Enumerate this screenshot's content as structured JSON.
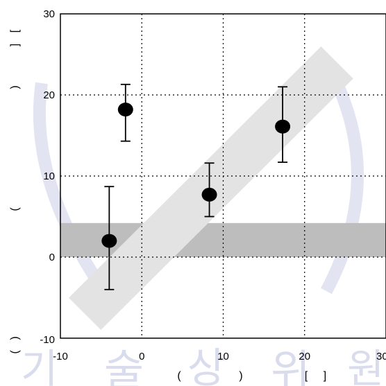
{
  "chart_data": {
    "type": "scatter",
    "title": "",
    "xlim": [
      -10,
      30
    ],
    "ylim": [
      -10,
      30
    ],
    "x_ticks": [
      -10,
      0,
      10,
      20,
      30
    ],
    "y_ticks": [
      -10,
      0,
      10,
      20,
      30
    ],
    "x_tick_labels": [
      "-10",
      "0",
      "10",
      "20",
      "30"
    ],
    "y_tick_labels": [
      "-10",
      "0",
      "10",
      "20",
      "30"
    ],
    "xlabel_fragments": [
      "(",
      ")",
      "[",
      "]"
    ],
    "ylabel_fragments": [
      "[",
      "]",
      ")",
      "(",
      ")",
      "("
    ],
    "grid": "dotted",
    "series": [
      {
        "marker": "filled-circle",
        "color": "#000000",
        "points": [
          {
            "x": -4,
            "y": 2.0,
            "y_low": -4.0,
            "y_high": 8.7
          },
          {
            "x": -2,
            "y": 18.2,
            "y_low": 14.3,
            "y_high": 21.3
          },
          {
            "x": 8.3,
            "y": 7.7,
            "y_low": 5.0,
            "y_high": 11.6
          },
          {
            "x": 17.3,
            "y": 16.1,
            "y_low": 11.7,
            "y_high": 21.0
          }
        ]
      }
    ],
    "bands": [
      {
        "kind": "horizontal",
        "y_low": 0,
        "y_high": 4.2,
        "color": "#bdbdbd"
      },
      {
        "kind": "diagonal",
        "from": [
          -7,
          -7
        ],
        "to": [
          24,
          24
        ],
        "half_width": 2.8,
        "color": "#e3e3e3"
      }
    ]
  },
  "watermark": {
    "glyphs": [
      "기",
      "술",
      "상",
      "위",
      "원"
    ],
    "color": "#d9dcec"
  }
}
